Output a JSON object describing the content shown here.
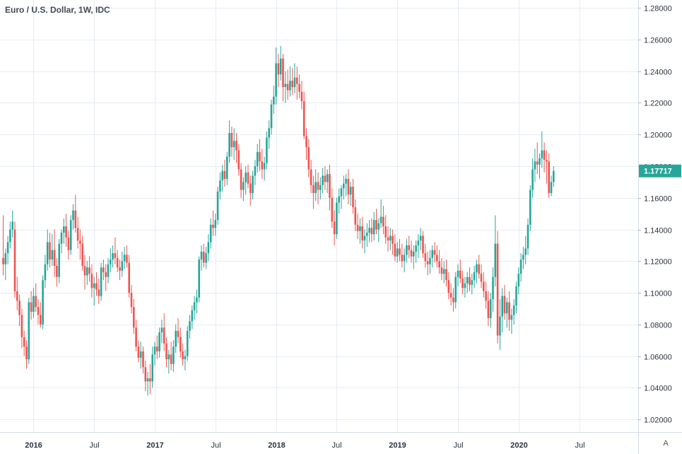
{
  "title": "Euro / U.S. Dollar, 1W, IDC",
  "last_price": "1.17717",
  "axis_mode_label": "A",
  "colors": {
    "up": "#26a69a",
    "down": "#ef5350",
    "grid": "#e6ecf2",
    "axis": "#d6dce5",
    "badge": "#26a69a"
  },
  "chart_data": {
    "type": "candlestick",
    "title": "Euro / U.S. Dollar, 1W, IDC",
    "ylim": [
      1.012,
      1.285
    ],
    "y_ticks": [
      "1.02000",
      "1.04000",
      "1.06000",
      "1.08000",
      "1.10000",
      "1.12000",
      "1.14000",
      "1.16000",
      "1.18000",
      "1.20000",
      "1.22000",
      "1.24000",
      "1.26000",
      "1.28000"
    ],
    "x_tick_labels": [
      {
        "label": "2016",
        "week": 13,
        "year": true
      },
      {
        "label": "Jul",
        "week": 39,
        "year": false
      },
      {
        "label": "2017",
        "week": 65,
        "year": true
      },
      {
        "label": "Jul",
        "week": 91,
        "year": false
      },
      {
        "label": "2018",
        "week": 117,
        "year": true
      },
      {
        "label": "Jul",
        "week": 143,
        "year": false
      },
      {
        "label": "2019",
        "week": 169,
        "year": true
      },
      {
        "label": "Jul",
        "week": 195,
        "year": false
      },
      {
        "label": "2020",
        "week": 221,
        "year": true
      },
      {
        "label": "Jul",
        "week": 247,
        "year": false
      }
    ],
    "grid": true,
    "candles": [
      [
        1.122,
        1.149,
        1.111,
        1.118
      ],
      [
        1.118,
        1.128,
        1.108,
        1.125
      ],
      [
        1.125,
        1.136,
        1.118,
        1.132
      ],
      [
        1.132,
        1.145,
        1.128,
        1.14
      ],
      [
        1.14,
        1.152,
        1.135,
        1.145
      ],
      [
        1.14,
        1.145,
        1.097,
        1.101
      ],
      [
        1.101,
        1.11,
        1.089,
        1.095
      ],
      [
        1.095,
        1.099,
        1.079,
        1.086
      ],
      [
        1.086,
        1.09,
        1.065,
        1.072
      ],
      [
        1.072,
        1.076,
        1.06,
        1.066
      ],
      [
        1.066,
        1.07,
        1.052,
        1.058
      ],
      [
        1.058,
        1.097,
        1.055,
        1.094
      ],
      [
        1.094,
        1.101,
        1.083,
        1.088
      ],
      [
        1.088,
        1.103,
        1.084,
        1.098
      ],
      [
        1.098,
        1.106,
        1.088,
        1.091
      ],
      [
        1.091,
        1.096,
        1.08,
        1.086
      ],
      [
        1.086,
        1.094,
        1.078,
        1.08
      ],
      [
        1.08,
        1.111,
        1.077,
        1.108
      ],
      [
        1.108,
        1.124,
        1.103,
        1.118
      ],
      [
        1.118,
        1.14,
        1.114,
        1.132
      ],
      [
        1.132,
        1.138,
        1.116,
        1.121
      ],
      [
        1.121,
        1.137,
        1.117,
        1.127
      ],
      [
        1.127,
        1.14,
        1.11,
        1.117
      ],
      [
        1.117,
        1.122,
        1.104,
        1.11
      ],
      [
        1.11,
        1.134,
        1.106,
        1.131
      ],
      [
        1.131,
        1.14,
        1.125,
        1.138
      ],
      [
        1.138,
        1.147,
        1.131,
        1.142
      ],
      [
        1.142,
        1.15,
        1.129,
        1.135
      ],
      [
        1.135,
        1.139,
        1.121,
        1.127
      ],
      [
        1.127,
        1.149,
        1.124,
        1.146
      ],
      [
        1.146,
        1.156,
        1.14,
        1.152
      ],
      [
        1.152,
        1.162,
        1.138,
        1.141
      ],
      [
        1.141,
        1.148,
        1.128,
        1.133
      ],
      [
        1.133,
        1.14,
        1.121,
        1.131
      ],
      [
        1.131,
        1.136,
        1.114,
        1.117
      ],
      [
        1.117,
        1.124,
        1.102,
        1.111
      ],
      [
        1.111,
        1.12,
        1.105,
        1.116
      ],
      [
        1.116,
        1.123,
        1.107,
        1.112
      ],
      [
        1.112,
        1.118,
        1.097,
        1.103
      ],
      [
        1.103,
        1.11,
        1.092,
        1.106
      ],
      [
        1.106,
        1.113,
        1.098,
        1.102
      ],
      [
        1.102,
        1.109,
        1.093,
        1.098
      ],
      [
        1.098,
        1.119,
        1.095,
        1.116
      ],
      [
        1.116,
        1.121,
        1.108,
        1.113
      ],
      [
        1.113,
        1.118,
        1.101,
        1.11
      ],
      [
        1.11,
        1.122,
        1.106,
        1.118
      ],
      [
        1.118,
        1.128,
        1.113,
        1.121
      ],
      [
        1.121,
        1.13,
        1.116,
        1.125
      ],
      [
        1.125,
        1.135,
        1.118,
        1.122
      ],
      [
        1.122,
        1.127,
        1.113,
        1.116
      ],
      [
        1.116,
        1.121,
        1.108,
        1.114
      ],
      [
        1.114,
        1.126,
        1.11,
        1.12
      ],
      [
        1.12,
        1.129,
        1.115,
        1.124
      ],
      [
        1.124,
        1.13,
        1.116,
        1.119
      ],
      [
        1.119,
        1.124,
        1.097,
        1.1
      ],
      [
        1.1,
        1.105,
        1.087,
        1.091
      ],
      [
        1.091,
        1.096,
        1.074,
        1.078
      ],
      [
        1.078,
        1.083,
        1.063,
        1.066
      ],
      [
        1.066,
        1.07,
        1.056,
        1.059
      ],
      [
        1.059,
        1.069,
        1.052,
        1.063
      ],
      [
        1.063,
        1.066,
        1.049,
        1.053
      ],
      [
        1.053,
        1.057,
        1.038,
        1.044
      ],
      [
        1.044,
        1.05,
        1.035,
        1.046
      ],
      [
        1.046,
        1.055,
        1.036,
        1.044
      ],
      [
        1.044,
        1.066,
        1.04,
        1.061
      ],
      [
        1.061,
        1.069,
        1.054,
        1.066
      ],
      [
        1.066,
        1.073,
        1.058,
        1.063
      ],
      [
        1.063,
        1.078,
        1.059,
        1.075
      ],
      [
        1.075,
        1.083,
        1.068,
        1.078
      ],
      [
        1.078,
        1.087,
        1.063,
        1.068
      ],
      [
        1.068,
        1.072,
        1.053,
        1.058
      ],
      [
        1.058,
        1.064,
        1.049,
        1.061
      ],
      [
        1.061,
        1.069,
        1.051,
        1.055
      ],
      [
        1.055,
        1.07,
        1.05,
        1.066
      ],
      [
        1.066,
        1.08,
        1.062,
        1.076
      ],
      [
        1.076,
        1.084,
        1.068,
        1.072
      ],
      [
        1.072,
        1.078,
        1.059,
        1.063
      ],
      [
        1.063,
        1.068,
        1.054,
        1.058
      ],
      [
        1.058,
        1.064,
        1.051,
        1.06
      ],
      [
        1.06,
        1.079,
        1.057,
        1.076
      ],
      [
        1.076,
        1.086,
        1.071,
        1.082
      ],
      [
        1.082,
        1.092,
        1.077,
        1.089
      ],
      [
        1.089,
        1.098,
        1.083,
        1.094
      ],
      [
        1.094,
        1.102,
        1.087,
        1.097
      ],
      [
        1.097,
        1.123,
        1.094,
        1.121
      ],
      [
        1.121,
        1.13,
        1.114,
        1.126
      ],
      [
        1.126,
        1.131,
        1.116,
        1.119
      ],
      [
        1.119,
        1.129,
        1.115,
        1.125
      ],
      [
        1.125,
        1.137,
        1.12,
        1.132
      ],
      [
        1.132,
        1.147,
        1.128,
        1.143
      ],
      [
        1.143,
        1.152,
        1.136,
        1.141
      ],
      [
        1.141,
        1.15,
        1.136,
        1.146
      ],
      [
        1.146,
        1.167,
        1.143,
        1.164
      ],
      [
        1.164,
        1.176,
        1.159,
        1.171
      ],
      [
        1.171,
        1.181,
        1.164,
        1.177
      ],
      [
        1.177,
        1.184,
        1.167,
        1.172
      ],
      [
        1.172,
        1.189,
        1.168,
        1.186
      ],
      [
        1.186,
        1.209,
        1.182,
        1.201
      ],
      [
        1.201,
        1.205,
        1.186,
        1.192
      ],
      [
        1.192,
        1.204,
        1.184,
        1.196
      ],
      [
        1.196,
        1.201,
        1.182,
        1.19
      ],
      [
        1.19,
        1.194,
        1.174,
        1.178
      ],
      [
        1.178,
        1.182,
        1.16,
        1.165
      ],
      [
        1.165,
        1.173,
        1.158,
        1.17
      ],
      [
        1.17,
        1.18,
        1.162,
        1.176
      ],
      [
        1.176,
        1.181,
        1.166,
        1.169
      ],
      [
        1.169,
        1.174,
        1.155,
        1.163
      ],
      [
        1.163,
        1.177,
        1.159,
        1.174
      ],
      [
        1.174,
        1.184,
        1.168,
        1.18
      ],
      [
        1.18,
        1.194,
        1.176,
        1.189
      ],
      [
        1.189,
        1.197,
        1.177,
        1.183
      ],
      [
        1.183,
        1.191,
        1.172,
        1.178
      ],
      [
        1.178,
        1.186,
        1.171,
        1.182
      ],
      [
        1.182,
        1.202,
        1.178,
        1.198
      ],
      [
        1.198,
        1.209,
        1.191,
        1.204
      ],
      [
        1.204,
        1.222,
        1.2,
        1.219
      ],
      [
        1.219,
        1.231,
        1.213,
        1.224
      ],
      [
        1.224,
        1.255,
        1.219,
        1.245
      ],
      [
        1.245,
        1.251,
        1.23,
        1.238
      ],
      [
        1.238,
        1.256,
        1.234,
        1.248
      ],
      [
        1.248,
        1.251,
        1.221,
        1.23
      ],
      [
        1.23,
        1.24,
        1.22,
        1.232
      ],
      [
        1.232,
        1.241,
        1.222,
        1.228
      ],
      [
        1.228,
        1.243,
        1.224,
        1.234
      ],
      [
        1.234,
        1.242,
        1.225,
        1.23
      ],
      [
        1.23,
        1.245,
        1.226,
        1.236
      ],
      [
        1.236,
        1.243,
        1.222,
        1.232
      ],
      [
        1.232,
        1.238,
        1.223,
        1.227
      ],
      [
        1.227,
        1.234,
        1.216,
        1.221
      ],
      [
        1.221,
        1.227,
        1.197,
        1.199
      ],
      [
        1.199,
        1.204,
        1.184,
        1.192
      ],
      [
        1.192,
        1.197,
        1.173,
        1.178
      ],
      [
        1.178,
        1.184,
        1.163,
        1.168
      ],
      [
        1.168,
        1.174,
        1.153,
        1.163
      ],
      [
        1.163,
        1.178,
        1.158,
        1.17
      ],
      [
        1.17,
        1.176,
        1.156,
        1.165
      ],
      [
        1.165,
        1.173,
        1.159,
        1.168
      ],
      [
        1.168,
        1.179,
        1.163,
        1.174
      ],
      [
        1.174,
        1.18,
        1.165,
        1.17
      ],
      [
        1.17,
        1.178,
        1.163,
        1.175
      ],
      [
        1.175,
        1.181,
        1.152,
        1.16
      ],
      [
        1.16,
        1.166,
        1.141,
        1.145
      ],
      [
        1.145,
        1.152,
        1.13,
        1.137
      ],
      [
        1.137,
        1.16,
        1.134,
        1.157
      ],
      [
        1.157,
        1.166,
        1.15,
        1.161
      ],
      [
        1.161,
        1.168,
        1.153,
        1.166
      ],
      [
        1.166,
        1.174,
        1.159,
        1.169
      ],
      [
        1.169,
        1.175,
        1.161,
        1.172
      ],
      [
        1.172,
        1.178,
        1.156,
        1.162
      ],
      [
        1.162,
        1.17,
        1.155,
        1.167
      ],
      [
        1.167,
        1.172,
        1.15,
        1.154
      ],
      [
        1.154,
        1.159,
        1.139,
        1.143
      ],
      [
        1.143,
        1.15,
        1.134,
        1.139
      ],
      [
        1.139,
        1.147,
        1.131,
        1.142
      ],
      [
        1.142,
        1.148,
        1.128,
        1.133
      ],
      [
        1.133,
        1.14,
        1.125,
        1.136
      ],
      [
        1.136,
        1.144,
        1.129,
        1.138
      ],
      [
        1.138,
        1.146,
        1.132,
        1.141
      ],
      [
        1.141,
        1.147,
        1.132,
        1.137
      ],
      [
        1.137,
        1.151,
        1.133,
        1.146
      ],
      [
        1.146,
        1.153,
        1.137,
        1.14
      ],
      [
        1.14,
        1.147,
        1.132,
        1.144
      ],
      [
        1.144,
        1.159,
        1.141,
        1.148
      ],
      [
        1.148,
        1.155,
        1.137,
        1.142
      ],
      [
        1.142,
        1.149,
        1.131,
        1.135
      ],
      [
        1.135,
        1.142,
        1.126,
        1.133
      ],
      [
        1.133,
        1.141,
        1.127,
        1.136
      ],
      [
        1.136,
        1.14,
        1.124,
        1.131
      ],
      [
        1.131,
        1.137,
        1.12,
        1.123
      ],
      [
        1.123,
        1.132,
        1.119,
        1.128
      ],
      [
        1.128,
        1.134,
        1.12,
        1.124
      ],
      [
        1.124,
        1.131,
        1.116,
        1.12
      ],
      [
        1.12,
        1.128,
        1.113,
        1.124
      ],
      [
        1.124,
        1.134,
        1.119,
        1.13
      ],
      [
        1.13,
        1.136,
        1.122,
        1.127
      ],
      [
        1.127,
        1.133,
        1.119,
        1.123
      ],
      [
        1.123,
        1.13,
        1.115,
        1.126
      ],
      [
        1.126,
        1.133,
        1.119,
        1.13
      ],
      [
        1.13,
        1.137,
        1.122,
        1.133
      ],
      [
        1.133,
        1.141,
        1.127,
        1.136
      ],
      [
        1.136,
        1.139,
        1.122,
        1.125
      ],
      [
        1.125,
        1.131,
        1.116,
        1.12
      ],
      [
        1.12,
        1.126,
        1.111,
        1.118
      ],
      [
        1.118,
        1.127,
        1.112,
        1.122
      ],
      [
        1.122,
        1.13,
        1.116,
        1.127
      ],
      [
        1.127,
        1.132,
        1.119,
        1.124
      ],
      [
        1.124,
        1.13,
        1.116,
        1.12
      ],
      [
        1.12,
        1.127,
        1.112,
        1.116
      ],
      [
        1.116,
        1.122,
        1.108,
        1.112
      ],
      [
        1.112,
        1.12,
        1.106,
        1.115
      ],
      [
        1.115,
        1.121,
        1.104,
        1.108
      ],
      [
        1.108,
        1.113,
        1.096,
        1.1
      ],
      [
        1.1,
        1.106,
        1.092,
        1.097
      ],
      [
        1.097,
        1.103,
        1.088,
        1.094
      ],
      [
        1.094,
        1.113,
        1.09,
        1.11
      ],
      [
        1.11,
        1.118,
        1.104,
        1.114
      ],
      [
        1.114,
        1.121,
        1.106,
        1.109
      ],
      [
        1.109,
        1.114,
        1.099,
        1.103
      ],
      [
        1.103,
        1.11,
        1.097,
        1.106
      ],
      [
        1.106,
        1.113,
        1.1,
        1.11
      ],
      [
        1.11,
        1.116,
        1.101,
        1.105
      ],
      [
        1.105,
        1.112,
        1.099,
        1.108
      ],
      [
        1.108,
        1.117,
        1.103,
        1.113
      ],
      [
        1.113,
        1.121,
        1.106,
        1.118
      ],
      [
        1.118,
        1.124,
        1.109,
        1.112
      ],
      [
        1.112,
        1.118,
        1.103,
        1.107
      ],
      [
        1.107,
        1.113,
        1.097,
        1.101
      ],
      [
        1.101,
        1.107,
        1.09,
        1.095
      ],
      [
        1.095,
        1.101,
        1.079,
        1.084
      ],
      [
        1.084,
        1.1,
        1.078,
        1.096
      ],
      [
        1.096,
        1.116,
        1.088,
        1.11
      ],
      [
        1.11,
        1.149,
        1.104,
        1.131
      ],
      [
        1.131,
        1.139,
        1.068,
        1.073
      ],
      [
        1.073,
        1.096,
        1.064,
        1.085
      ],
      [
        1.085,
        1.103,
        1.075,
        1.098
      ],
      [
        1.098,
        1.105,
        1.083,
        1.087
      ],
      [
        1.087,
        1.097,
        1.078,
        1.094
      ],
      [
        1.094,
        1.101,
        1.076,
        1.083
      ],
      [
        1.083,
        1.09,
        1.074,
        1.086
      ],
      [
        1.086,
        1.096,
        1.08,
        1.092
      ],
      [
        1.092,
        1.107,
        1.087,
        1.104
      ],
      [
        1.104,
        1.116,
        1.099,
        1.112
      ],
      [
        1.112,
        1.125,
        1.107,
        1.121
      ],
      [
        1.121,
        1.129,
        1.115,
        1.124
      ],
      [
        1.124,
        1.136,
        1.118,
        1.128
      ],
      [
        1.128,
        1.147,
        1.124,
        1.143
      ],
      [
        1.143,
        1.168,
        1.139,
        1.165
      ],
      [
        1.165,
        1.185,
        1.16,
        1.178
      ],
      [
        1.178,
        1.191,
        1.17,
        1.183
      ],
      [
        1.183,
        1.195,
        1.175,
        1.181
      ],
      [
        1.181,
        1.188,
        1.172,
        1.185
      ],
      [
        1.185,
        1.202,
        1.179,
        1.19
      ],
      [
        1.19,
        1.195,
        1.176,
        1.184
      ],
      [
        1.184,
        1.19,
        1.169,
        1.183
      ],
      [
        1.183,
        1.188,
        1.16,
        1.163
      ],
      [
        1.163,
        1.174,
        1.161,
        1.17
      ],
      [
        1.17,
        1.18,
        1.167,
        1.177
      ]
    ]
  }
}
